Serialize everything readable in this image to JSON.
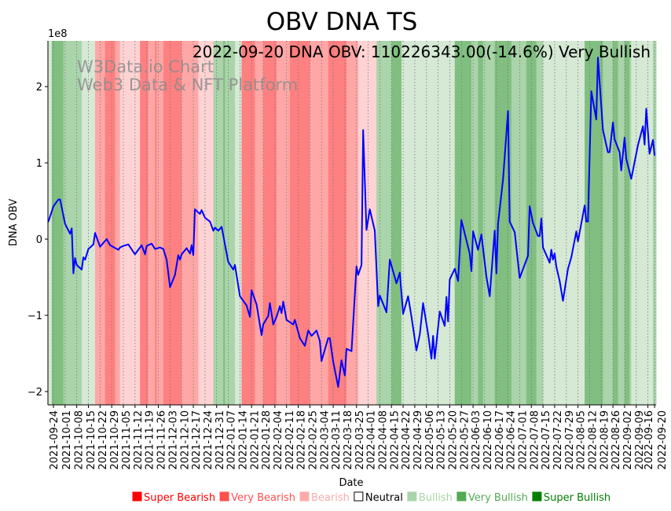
{
  "chart_data": {
    "type": "line",
    "title": "OBV DNA TS",
    "annotation": "2022-09-20 DNA OBV: 110226343.00(-14.6%) Very Bullish",
    "watermark": [
      "W3Data.io Chart",
      "Web3 Data & NFT Platform"
    ],
    "xlabel": "Date",
    "ylabel": "DNA OBV",
    "y_offset_label": "1e8",
    "y_scale": 100000000,
    "x_unit": "days since 2021-09-24",
    "xlim": [
      -3.3,
      361.9
    ],
    "ylim": [
      -2.175,
      2.6
    ],
    "yticks": [
      -2,
      -1,
      0,
      1,
      2
    ],
    "ytick_labels": [
      "−2",
      "−1",
      "0",
      "1",
      "2"
    ],
    "grid": "vertical dotted at x ticks",
    "xticks": [
      0,
      7,
      14,
      21,
      28,
      35,
      42,
      49,
      56,
      63,
      70,
      77,
      84,
      91,
      98,
      105,
      112,
      119,
      126,
      133,
      140,
      147,
      154,
      161,
      168,
      175,
      182,
      189,
      196,
      203,
      210,
      217,
      224,
      231,
      238,
      245,
      252,
      259,
      266,
      273,
      280,
      287,
      294,
      301,
      308,
      315,
      322,
      329,
      336,
      343,
      350,
      357,
      361
    ],
    "xtick_labels": [
      "2021-09-24",
      "2021-10-01",
      "2021-10-08",
      "2021-10-15",
      "2021-10-22",
      "2021-10-29",
      "2021-11-05",
      "2021-11-12",
      "2021-11-19",
      "2021-11-26",
      "2021-12-03",
      "2021-12-10",
      "2021-12-17",
      "2021-12-24",
      "2021-12-31",
      "2022-01-07",
      "2022-01-14",
      "2022-01-21",
      "2022-01-28",
      "2022-02-04",
      "2022-02-11",
      "2022-02-18",
      "2022-02-25",
      "2022-03-04",
      "2022-03-11",
      "2022-03-18",
      "2022-03-25",
      "2022-04-01",
      "2022-04-08",
      "2022-04-15",
      "2022-04-22",
      "2022-04-29",
      "2022-05-06",
      "2022-05-13",
      "2022-05-20",
      "2022-05-27",
      "2022-06-03",
      "2022-06-10",
      "2022-06-17",
      "2022-06-24",
      "2022-07-01",
      "2022-07-08",
      "2022-07-15",
      "2022-07-22",
      "2022-07-29",
      "2022-08-05",
      "2022-08-12",
      "2022-08-19",
      "2022-08-26",
      "2022-09-02",
      "2022-09-09",
      "2022-09-16",
      "2022-09-20"
    ],
    "series": [
      {
        "name": "DNA OBV",
        "color": "#0000ff",
        "x": [
          -3,
          0,
          3,
          4,
          7,
          10,
          11,
          12,
          13,
          14,
          17,
          18,
          19,
          21,
          24,
          25,
          28,
          32,
          34,
          39,
          40,
          42,
          45,
          49,
          53,
          55,
          56,
          59,
          61,
          64,
          66,
          68,
          70,
          73,
          75,
          76,
          77,
          80,
          82,
          83,
          84,
          85,
          88,
          89,
          91,
          94,
          96,
          97,
          99,
          101,
          105,
          108,
          109,
          112,
          116,
          118,
          119,
          122,
          125,
          126,
          129,
          130,
          132,
          134,
          136,
          137,
          138,
          140,
          144,
          145,
          148,
          151,
          153,
          155,
          158,
          160,
          161,
          165,
          166,
          168,
          171,
          173,
          175,
          176,
          179,
          182,
          183,
          185,
          186,
          188,
          190,
          193,
          195,
          196,
          200,
          202,
          206,
          208,
          210,
          213,
          215,
          218,
          220,
          222,
          225,
          227,
          228,
          229,
          232,
          235,
          236,
          237,
          238,
          241,
          243,
          245,
          250,
          251,
          252,
          255,
          257,
          260,
          262,
          265,
          266,
          267,
          270,
          273,
          274,
          277,
          280,
          285,
          286,
          288,
          291,
          292,
          293,
          294,
          298,
          299,
          300,
          301,
          302,
          304,
          306,
          309,
          311,
          314,
          315,
          319,
          320,
          321,
          323,
          326,
          327,
          330,
          333,
          334,
          336,
          337,
          340,
          341,
          343,
          344,
          347,
          351,
          354,
          355,
          356,
          358,
          360,
          361
        ],
        "y": [
          0.23,
          0.43,
          0.52,
          0.52,
          0.2,
          0.07,
          0.14,
          -0.45,
          -0.25,
          -0.34,
          -0.4,
          -0.24,
          -0.27,
          -0.13,
          -0.07,
          0.08,
          -0.1,
          0.0,
          -0.08,
          -0.14,
          -0.11,
          -0.09,
          -0.07,
          -0.2,
          -0.08,
          -0.2,
          -0.09,
          -0.06,
          -0.13,
          -0.11,
          -0.13,
          -0.27,
          -0.63,
          -0.47,
          -0.21,
          -0.27,
          -0.2,
          -0.12,
          -0.19,
          -0.08,
          -0.21,
          0.39,
          0.33,
          0.38,
          0.28,
          0.23,
          0.11,
          0.15,
          0.11,
          0.16,
          -0.3,
          -0.4,
          -0.34,
          -0.75,
          -0.87,
          -1.02,
          -0.67,
          -0.86,
          -1.26,
          -1.12,
          -1.01,
          -0.84,
          -1.12,
          -1.02,
          -0.88,
          -0.97,
          -0.82,
          -1.06,
          -1.12,
          -1.06,
          -1.3,
          -1.4,
          -1.2,
          -1.27,
          -1.2,
          -1.34,
          -1.6,
          -1.3,
          -1.3,
          -1.61,
          -1.94,
          -1.59,
          -1.79,
          -1.44,
          -1.47,
          -0.36,
          -0.47,
          -0.34,
          1.43,
          0.12,
          0.39,
          0.11,
          -0.88,
          -0.74,
          -0.96,
          -0.27,
          -0.58,
          -0.44,
          -0.98,
          -0.75,
          -1.02,
          -1.46,
          -1.25,
          -0.84,
          -1.25,
          -1.57,
          -1.27,
          -1.57,
          -0.95,
          -1.14,
          -0.76,
          -1.08,
          -0.53,
          -0.39,
          -0.55,
          0.25,
          -0.19,
          -0.42,
          0.1,
          -0.14,
          0.06,
          -0.49,
          -0.75,
          0.11,
          -0.45,
          0.2,
          0.78,
          1.68,
          0.23,
          0.09,
          -0.51,
          -0.22,
          0.43,
          0.21,
          0.04,
          0.04,
          0.27,
          -0.11,
          -0.31,
          -0.14,
          -0.27,
          -0.19,
          -0.36,
          -0.55,
          -0.81,
          -0.39,
          -0.24,
          0.1,
          -0.03,
          0.44,
          0.23,
          0.23,
          1.94,
          1.57,
          2.38,
          1.43,
          1.14,
          1.14,
          1.53,
          1.31,
          1.14,
          0.9,
          1.33,
          1.05,
          0.79,
          1.23,
          1.48,
          1.24,
          1.71,
          1.12,
          1.3,
          1.1
        ]
      }
    ],
    "sentiment_bands": [
      [
        -3.3,
        -1,
        "bullish"
      ],
      [
        -1,
        6,
        "super_bullish"
      ],
      [
        6,
        17,
        "very_bullish"
      ],
      [
        17,
        25,
        "bullish"
      ],
      [
        25,
        31,
        "very_bearish"
      ],
      [
        31,
        37,
        "super_bearish"
      ],
      [
        37,
        40,
        "very_bearish"
      ],
      [
        40,
        52,
        "bearish"
      ],
      [
        52,
        57,
        "super_bearish"
      ],
      [
        57,
        61,
        "very_bearish"
      ],
      [
        61,
        62,
        "super_bearish"
      ],
      [
        62,
        66,
        "very_bearish"
      ],
      [
        66,
        77,
        "super_bearish"
      ],
      [
        77,
        87,
        "very_bearish"
      ],
      [
        87,
        96,
        "bearish"
      ],
      [
        96,
        102,
        "very_bullish"
      ],
      [
        102,
        103,
        "super_bullish"
      ],
      [
        103,
        109,
        "very_bullish"
      ],
      [
        109,
        113,
        "bullish"
      ],
      [
        113,
        121,
        "super_bearish"
      ],
      [
        121,
        126,
        "very_bearish"
      ],
      [
        126,
        134,
        "super_bearish"
      ],
      [
        134,
        138,
        "very_bearish"
      ],
      [
        138,
        142,
        "very_bearish"
      ],
      [
        142,
        154,
        "super_bearish"
      ],
      [
        154,
        161,
        "very_bearish"
      ],
      [
        161,
        165,
        "very_bearish"
      ],
      [
        165,
        176,
        "super_bearish"
      ],
      [
        176,
        183,
        "very_bearish"
      ],
      [
        183,
        194,
        "bearish"
      ],
      [
        194,
        203,
        "very_bullish"
      ],
      [
        203,
        209,
        "super_bullish"
      ],
      [
        209,
        241,
        "bullish"
      ],
      [
        241,
        251,
        "super_bullish"
      ],
      [
        251,
        255,
        "very_bullish"
      ],
      [
        255,
        258,
        "super_bullish"
      ],
      [
        258,
        265,
        "very_bullish"
      ],
      [
        265,
        275,
        "super_bullish"
      ],
      [
        275,
        284,
        "very_bullish"
      ],
      [
        284,
        290,
        "super_bullish"
      ],
      [
        290,
        294,
        "very_bullish"
      ],
      [
        294,
        319,
        "bullish"
      ],
      [
        319,
        330,
        "super_bullish"
      ],
      [
        330,
        336,
        "very_bullish"
      ],
      [
        336,
        339,
        "super_bullish"
      ],
      [
        339,
        343,
        "very_bullish"
      ],
      [
        343,
        346,
        "super_bullish"
      ],
      [
        346,
        347,
        "very_bullish"
      ],
      [
        347,
        360,
        "bullish"
      ],
      [
        360,
        361.9,
        "very_bullish"
      ]
    ],
    "band_colors": {
      "super_bearish": "#ff8080",
      "very_bearish": "#ffa7a7",
      "bearish": "#ffd3d3",
      "bullish": "#d5e9d5",
      "very_bullish": "#aad4aa",
      "super_bullish": "#80bf80"
    },
    "legend": {
      "placement": "bottom",
      "items": [
        {
          "label": "Super Bearish",
          "color": "#ff0000"
        },
        {
          "label": "Very Bearish",
          "color": "#ff5050"
        },
        {
          "label": "Bearish",
          "color": "#ffaaaa"
        },
        {
          "label": "Neutral",
          "color": "#ffffff"
        },
        {
          "label": "Bullish",
          "color": "#aad4aa"
        },
        {
          "label": "Very Bullish",
          "color": "#55aa55"
        },
        {
          "label": "Super Bullish",
          "color": "#008000"
        }
      ]
    }
  }
}
